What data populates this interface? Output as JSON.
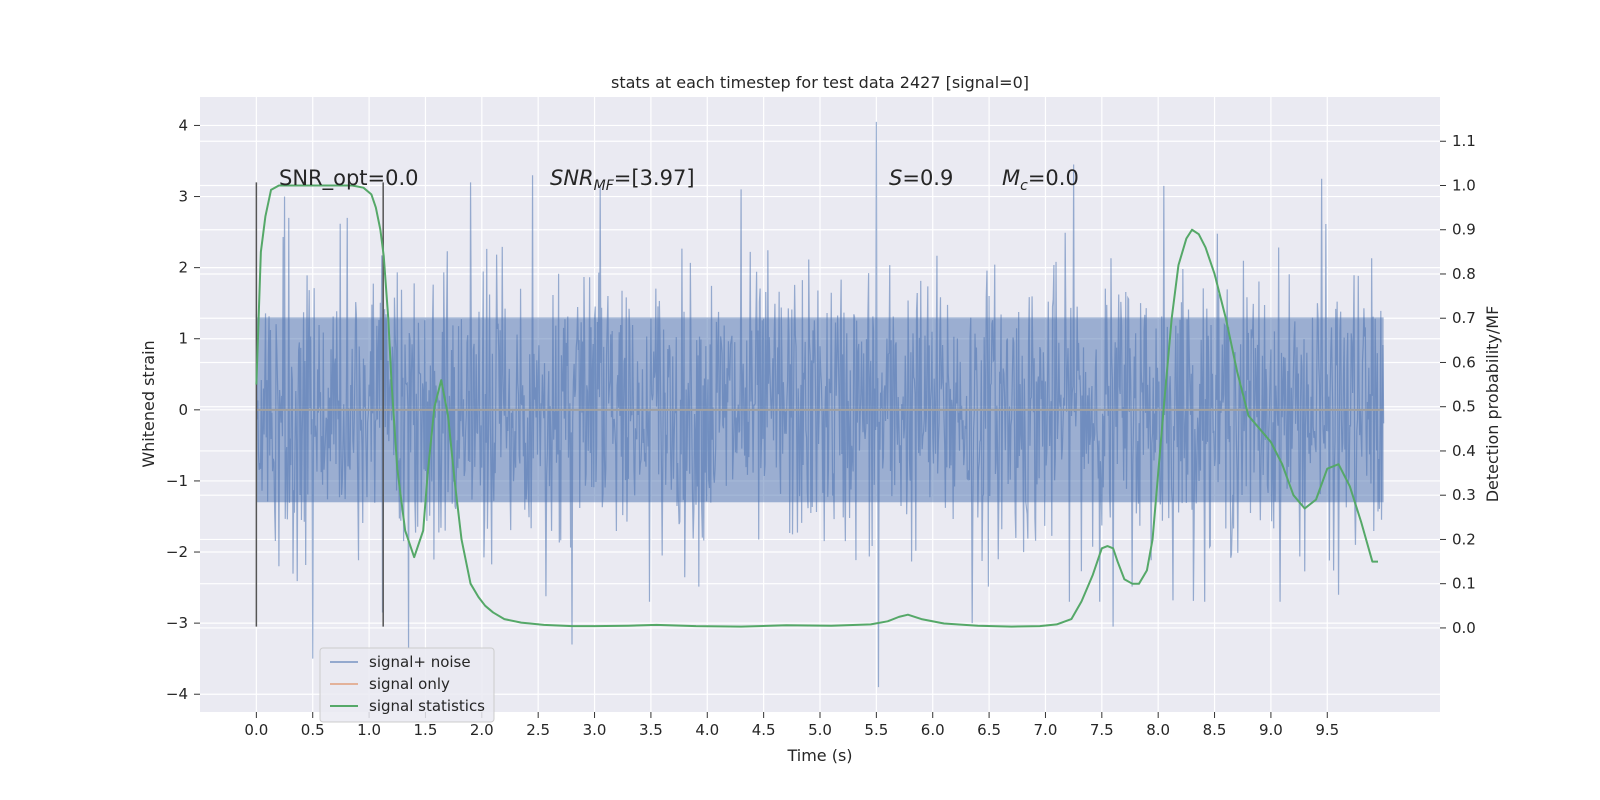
{
  "chart_data": {
    "type": "line",
    "title": "stats at each timestep for test data 2427 [signal=0]",
    "xlabel": "Time (s)",
    "ylabel": "Whitened strain",
    "y2label": "Detection probability/MF",
    "xlim": [
      -0.5,
      10.5
    ],
    "ylim": [
      -4.25,
      4.4
    ],
    "y2lim": [
      -0.19,
      1.2
    ],
    "xticks": [
      0.0,
      0.5,
      1.0,
      1.5,
      2.0,
      2.5,
      3.0,
      3.5,
      4.0,
      4.5,
      5.0,
      5.5,
      6.0,
      6.5,
      7.0,
      7.5,
      8.0,
      8.5,
      9.0,
      9.5
    ],
    "xtick_labels": [
      "0.0",
      "0.5",
      "1.0",
      "1.5",
      "2.0",
      "2.5",
      "3.0",
      "3.5",
      "4.0",
      "4.5",
      "5.0",
      "5.5",
      "6.0",
      "6.5",
      "7.0",
      "7.5",
      "8.0",
      "8.5",
      "9.0",
      "9.5"
    ],
    "yticks": [
      4,
      3,
      2,
      1,
      0,
      -1,
      -2,
      -3,
      -4
    ],
    "ytick_labels": [
      "4",
      "3",
      "2",
      "1",
      "0",
      "−1",
      "−2",
      "−3",
      "−4"
    ],
    "y2ticks": [
      1.1,
      1.0,
      0.9,
      0.8,
      0.7,
      0.6,
      0.5,
      0.4,
      0.3,
      0.2,
      0.1,
      0.0
    ],
    "y2tick_labels": [
      "1.1",
      "1.0",
      "0.9",
      "0.8",
      "0.7",
      "0.6",
      "0.5",
      "0.4",
      "0.3",
      "0.2",
      "0.1",
      "0.0"
    ],
    "grid": true,
    "legend_position": "lower-left",
    "annotations": {
      "snr_opt": "SNR_opt=0.0",
      "snr_mf_base": "SNR",
      "snr_mf_sub": "MF",
      "snr_mf_value": "=[3.97]",
      "s_var": "S",
      "s_value": "=0.9",
      "mc_base": "M",
      "mc_sub": "c",
      "mc_value": "=0.0"
    },
    "markers": [
      {
        "x": 0.0,
        "y_range": [
          -3.05,
          3.2
        ]
      },
      {
        "x": 1.125,
        "y_range": [
          -3.05,
          3.2
        ]
      }
    ],
    "series": [
      {
        "name": "signal+ noise",
        "color": "#4c72b0",
        "x_range": [
          0.0,
          10.0
        ],
        "envelope_core": 1.3,
        "envelope_peaks": [
          {
            "x": 0.25,
            "y": 3.0
          },
          {
            "x": 0.5,
            "y": -3.5
          },
          {
            "x": 0.2,
            "y": -2.2
          },
          {
            "x": 1.12,
            "y": -2.85
          },
          {
            "x": 1.35,
            "y": -3.35
          },
          {
            "x": 1.9,
            "y": 3.2
          },
          {
            "x": 2.45,
            "y": 3.3
          },
          {
            "x": 2.8,
            "y": -3.3
          },
          {
            "x": 3.05,
            "y": 3.15
          },
          {
            "x": 4.3,
            "y": 3.1
          },
          {
            "x": 5.5,
            "y": 4.05
          },
          {
            "x": 5.52,
            "y": -3.9
          },
          {
            "x": 6.35,
            "y": -3.0
          },
          {
            "x": 7.25,
            "y": 3.45
          },
          {
            "x": 7.6,
            "y": -3.05
          },
          {
            "x": 8.05,
            "y": 3.15
          },
          {
            "x": 9.45,
            "y": 3.25
          },
          {
            "x": 9.6,
            "y": -2.6
          }
        ]
      },
      {
        "name": "signal only",
        "color": "#dd8452",
        "constant_y": 0.0
      },
      {
        "name": "signal statistics",
        "color": "#55a868",
        "axis": "right",
        "x": [
          0.0,
          0.04,
          0.08,
          0.13,
          0.2,
          0.3,
          0.5,
          0.7,
          0.85,
          0.95,
          1.02,
          1.06,
          1.1,
          1.13,
          1.17,
          1.2,
          1.25,
          1.32,
          1.4,
          1.48,
          1.52,
          1.58,
          1.64,
          1.7,
          1.76,
          1.82,
          1.9,
          1.97,
          2.03,
          2.1,
          2.2,
          2.35,
          2.55,
          2.8,
          3.0,
          3.3,
          3.55,
          3.9,
          4.3,
          4.7,
          5.1,
          5.45,
          5.6,
          5.7,
          5.78,
          5.9,
          6.1,
          6.4,
          6.7,
          6.95,
          7.1,
          7.23,
          7.32,
          7.42,
          7.5,
          7.55,
          7.6,
          7.64,
          7.7,
          7.77,
          7.83,
          7.9,
          7.95,
          8.0,
          8.05,
          8.12,
          8.18,
          8.25,
          8.3,
          8.36,
          8.42,
          8.5,
          8.6,
          8.7,
          8.8,
          8.9,
          9.0,
          9.1,
          9.2,
          9.3,
          9.4,
          9.5,
          9.6,
          9.7,
          9.8,
          9.9,
          9.95
        ],
        "y": [
          0.55,
          0.85,
          0.93,
          0.99,
          1.0,
          1.0,
          1.0,
          1.0,
          1.0,
          0.995,
          0.98,
          0.95,
          0.9,
          0.84,
          0.7,
          0.55,
          0.36,
          0.22,
          0.16,
          0.22,
          0.35,
          0.5,
          0.56,
          0.48,
          0.33,
          0.2,
          0.1,
          0.07,
          0.05,
          0.035,
          0.02,
          0.012,
          0.007,
          0.004,
          0.004,
          0.005,
          0.007,
          0.004,
          0.003,
          0.006,
          0.005,
          0.008,
          0.015,
          0.025,
          0.03,
          0.02,
          0.01,
          0.005,
          0.003,
          0.004,
          0.008,
          0.02,
          0.06,
          0.12,
          0.18,
          0.185,
          0.18,
          0.15,
          0.11,
          0.1,
          0.1,
          0.13,
          0.2,
          0.35,
          0.5,
          0.7,
          0.82,
          0.88,
          0.9,
          0.89,
          0.86,
          0.8,
          0.7,
          0.58,
          0.48,
          0.45,
          0.42,
          0.37,
          0.3,
          0.27,
          0.29,
          0.36,
          0.37,
          0.32,
          0.24,
          0.15,
          0.15
        ]
      }
    ]
  }
}
